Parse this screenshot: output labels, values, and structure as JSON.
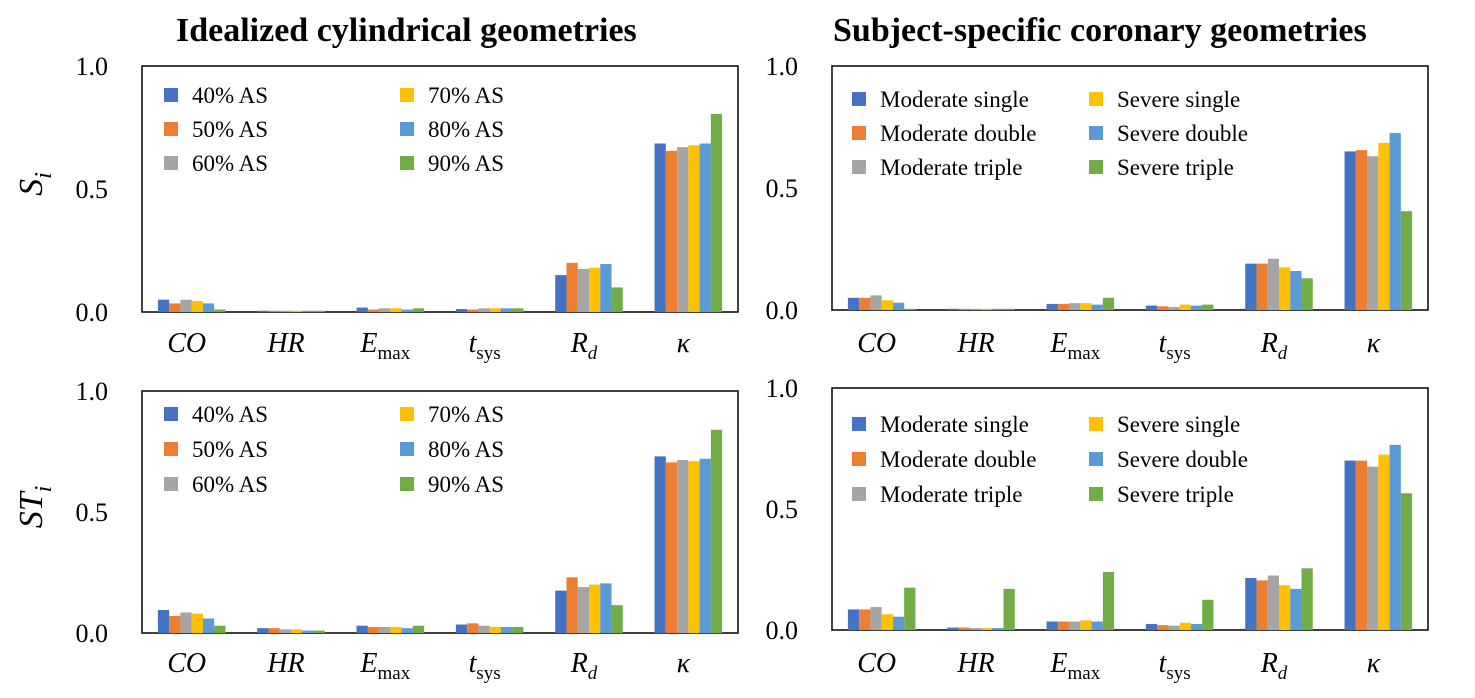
{
  "titles": {
    "left": "Idealized cylindrical geometries",
    "right": "Subject-specific coronary geometries"
  },
  "colors": {
    "blue": "#4472C4",
    "orange": "#ED7D31",
    "gray": "#A5A5A5",
    "yellow": "#FFC000",
    "lightblue": "#5B9BD5",
    "green": "#70AD47"
  },
  "chart_data": [
    {
      "type": "bar",
      "ylabel": "S_i",
      "ylim": [
        0,
        1.0
      ],
      "yticks": [
        "0.0",
        "0.5",
        "1.0"
      ],
      "categories": [
        "CO",
        "HR",
        "E_max",
        "t_sys",
        "R_d",
        "κ"
      ],
      "legend": "top-left, two columns",
      "series": [
        {
          "name": "40% AS",
          "values": [
            0.05,
            0.005,
            0.018,
            0.012,
            0.15,
            0.685
          ]
        },
        {
          "name": "50% AS",
          "values": [
            0.035,
            0.005,
            0.01,
            0.01,
            0.2,
            0.655
          ]
        },
        {
          "name": "60% AS",
          "values": [
            0.05,
            0.005,
            0.015,
            0.015,
            0.175,
            0.67
          ]
        },
        {
          "name": "70% AS",
          "values": [
            0.045,
            0.005,
            0.015,
            0.015,
            0.18,
            0.678
          ]
        },
        {
          "name": "80% AS",
          "values": [
            0.035,
            0.005,
            0.01,
            0.015,
            0.195,
            0.685
          ]
        },
        {
          "name": "90% AS",
          "values": [
            0.01,
            0.005,
            0.015,
            0.015,
            0.1,
            0.805
          ]
        }
      ]
    },
    {
      "type": "bar",
      "ylabel": "S_i",
      "ylim": [
        0,
        1.0
      ],
      "yticks": [
        "0.0",
        "0.5",
        "1.0"
      ],
      "categories": [
        "CO",
        "HR",
        "E_max",
        "t_sys",
        "R_d",
        "κ"
      ],
      "legend": "top-left, two columns",
      "series": [
        {
          "name": "Moderate single",
          "values": [
            0.05,
            0.005,
            0.025,
            0.018,
            0.19,
            0.65
          ]
        },
        {
          "name": "Moderate double",
          "values": [
            0.05,
            0.005,
            0.025,
            0.015,
            0.19,
            0.655
          ]
        },
        {
          "name": "Moderate triple",
          "values": [
            0.06,
            0.005,
            0.028,
            0.012,
            0.21,
            0.63
          ]
        },
        {
          "name": "Severe single",
          "values": [
            0.04,
            0.005,
            0.028,
            0.022,
            0.175,
            0.685
          ]
        },
        {
          "name": "Severe double",
          "values": [
            0.03,
            0.005,
            0.022,
            0.018,
            0.16,
            0.725
          ]
        },
        {
          "name": "Severe triple",
          "values": [
            0.005,
            0.005,
            0.05,
            0.022,
            0.13,
            0.405
          ]
        }
      ]
    },
    {
      "type": "bar",
      "ylabel": "ST_i",
      "ylim": [
        0,
        1.0
      ],
      "yticks": [
        "0.0",
        "0.5",
        "1.0"
      ],
      "categories": [
        "CO",
        "HR",
        "E_max",
        "t_sys",
        "R_d",
        "κ"
      ],
      "legend": "top-left, two columns",
      "series": [
        {
          "name": "40% AS",
          "values": [
            0.095,
            0.02,
            0.03,
            0.035,
            0.175,
            0.73
          ]
        },
        {
          "name": "50% AS",
          "values": [
            0.07,
            0.02,
            0.025,
            0.04,
            0.23,
            0.705
          ]
        },
        {
          "name": "60% AS",
          "values": [
            0.085,
            0.015,
            0.025,
            0.03,
            0.19,
            0.715
          ]
        },
        {
          "name": "70% AS",
          "values": [
            0.08,
            0.015,
            0.025,
            0.025,
            0.2,
            0.71
          ]
        },
        {
          "name": "80% AS",
          "values": [
            0.06,
            0.01,
            0.02,
            0.025,
            0.205,
            0.72
          ]
        },
        {
          "name": "90% AS",
          "values": [
            0.03,
            0.01,
            0.03,
            0.025,
            0.115,
            0.84
          ]
        }
      ]
    },
    {
      "type": "bar",
      "ylabel": "ST_i",
      "ylim": [
        0,
        1.0
      ],
      "yticks": [
        "0.0",
        "0.5",
        "1.0"
      ],
      "categories": [
        "CO",
        "HR",
        "E_max",
        "t_sys",
        "R_d",
        "κ"
      ],
      "legend": "top-left, two columns",
      "series": [
        {
          "name": "Moderate single",
          "values": [
            0.085,
            0.01,
            0.035,
            0.025,
            0.215,
            0.7
          ]
        },
        {
          "name": "Moderate double",
          "values": [
            0.085,
            0.01,
            0.035,
            0.02,
            0.205,
            0.7
          ]
        },
        {
          "name": "Moderate triple",
          "values": [
            0.095,
            0.008,
            0.035,
            0.018,
            0.225,
            0.675
          ]
        },
        {
          "name": "Severe single",
          "values": [
            0.065,
            0.008,
            0.04,
            0.03,
            0.185,
            0.725
          ]
        },
        {
          "name": "Severe double",
          "values": [
            0.055,
            0.008,
            0.035,
            0.025,
            0.17,
            0.765
          ]
        },
        {
          "name": "Severe triple",
          "values": [
            0.175,
            0.17,
            0.24,
            0.125,
            0.255,
            0.565
          ]
        }
      ]
    }
  ]
}
